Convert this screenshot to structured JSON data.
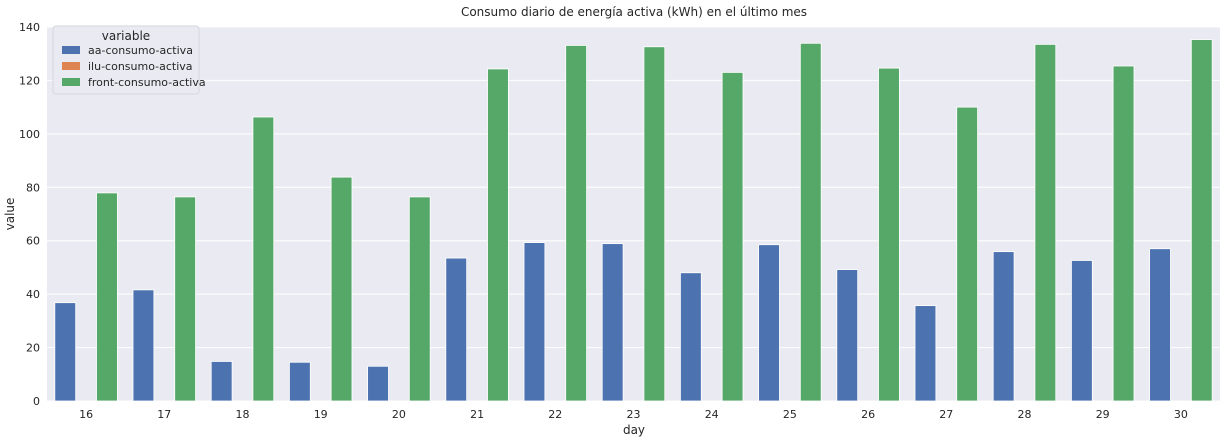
{
  "chart_data": {
    "type": "bar",
    "title": "Consumo diario de energía activa (kWh) en el último mes",
    "xlabel": "day",
    "ylabel": "value",
    "ylim": [
      0,
      140
    ],
    "yticks": [
      0,
      20,
      40,
      60,
      80,
      100,
      120,
      140
    ],
    "grid": true,
    "legend_title": "variable",
    "legend_position": "top-left",
    "categories": [
      "16",
      "17",
      "18",
      "19",
      "20",
      "21",
      "22",
      "23",
      "24",
      "25",
      "26",
      "27",
      "28",
      "29",
      "30"
    ],
    "series": [
      {
        "name": "aa-consumo-activa",
        "color": "#4c72b0",
        "values": [
          36.8,
          41.6,
          14.8,
          14.5,
          13.0,
          53.5,
          59.3,
          58.9,
          48.0,
          58.5,
          49.2,
          35.7,
          55.9,
          52.6,
          57.0
        ]
      },
      {
        "name": "ilu-consumo-activa",
        "color": "#dd8452",
        "values": [
          0,
          0,
          0,
          0,
          0,
          0,
          0,
          0,
          0,
          0,
          0,
          0,
          0,
          0,
          0
        ]
      },
      {
        "name": "front-consumo-activa",
        "color": "#55a868",
        "values": [
          77.9,
          76.4,
          106.3,
          83.8,
          76.4,
          124.3,
          133.1,
          132.6,
          123.0,
          133.9,
          124.6,
          110.0,
          133.5,
          125.4,
          135.3
        ]
      }
    ]
  }
}
